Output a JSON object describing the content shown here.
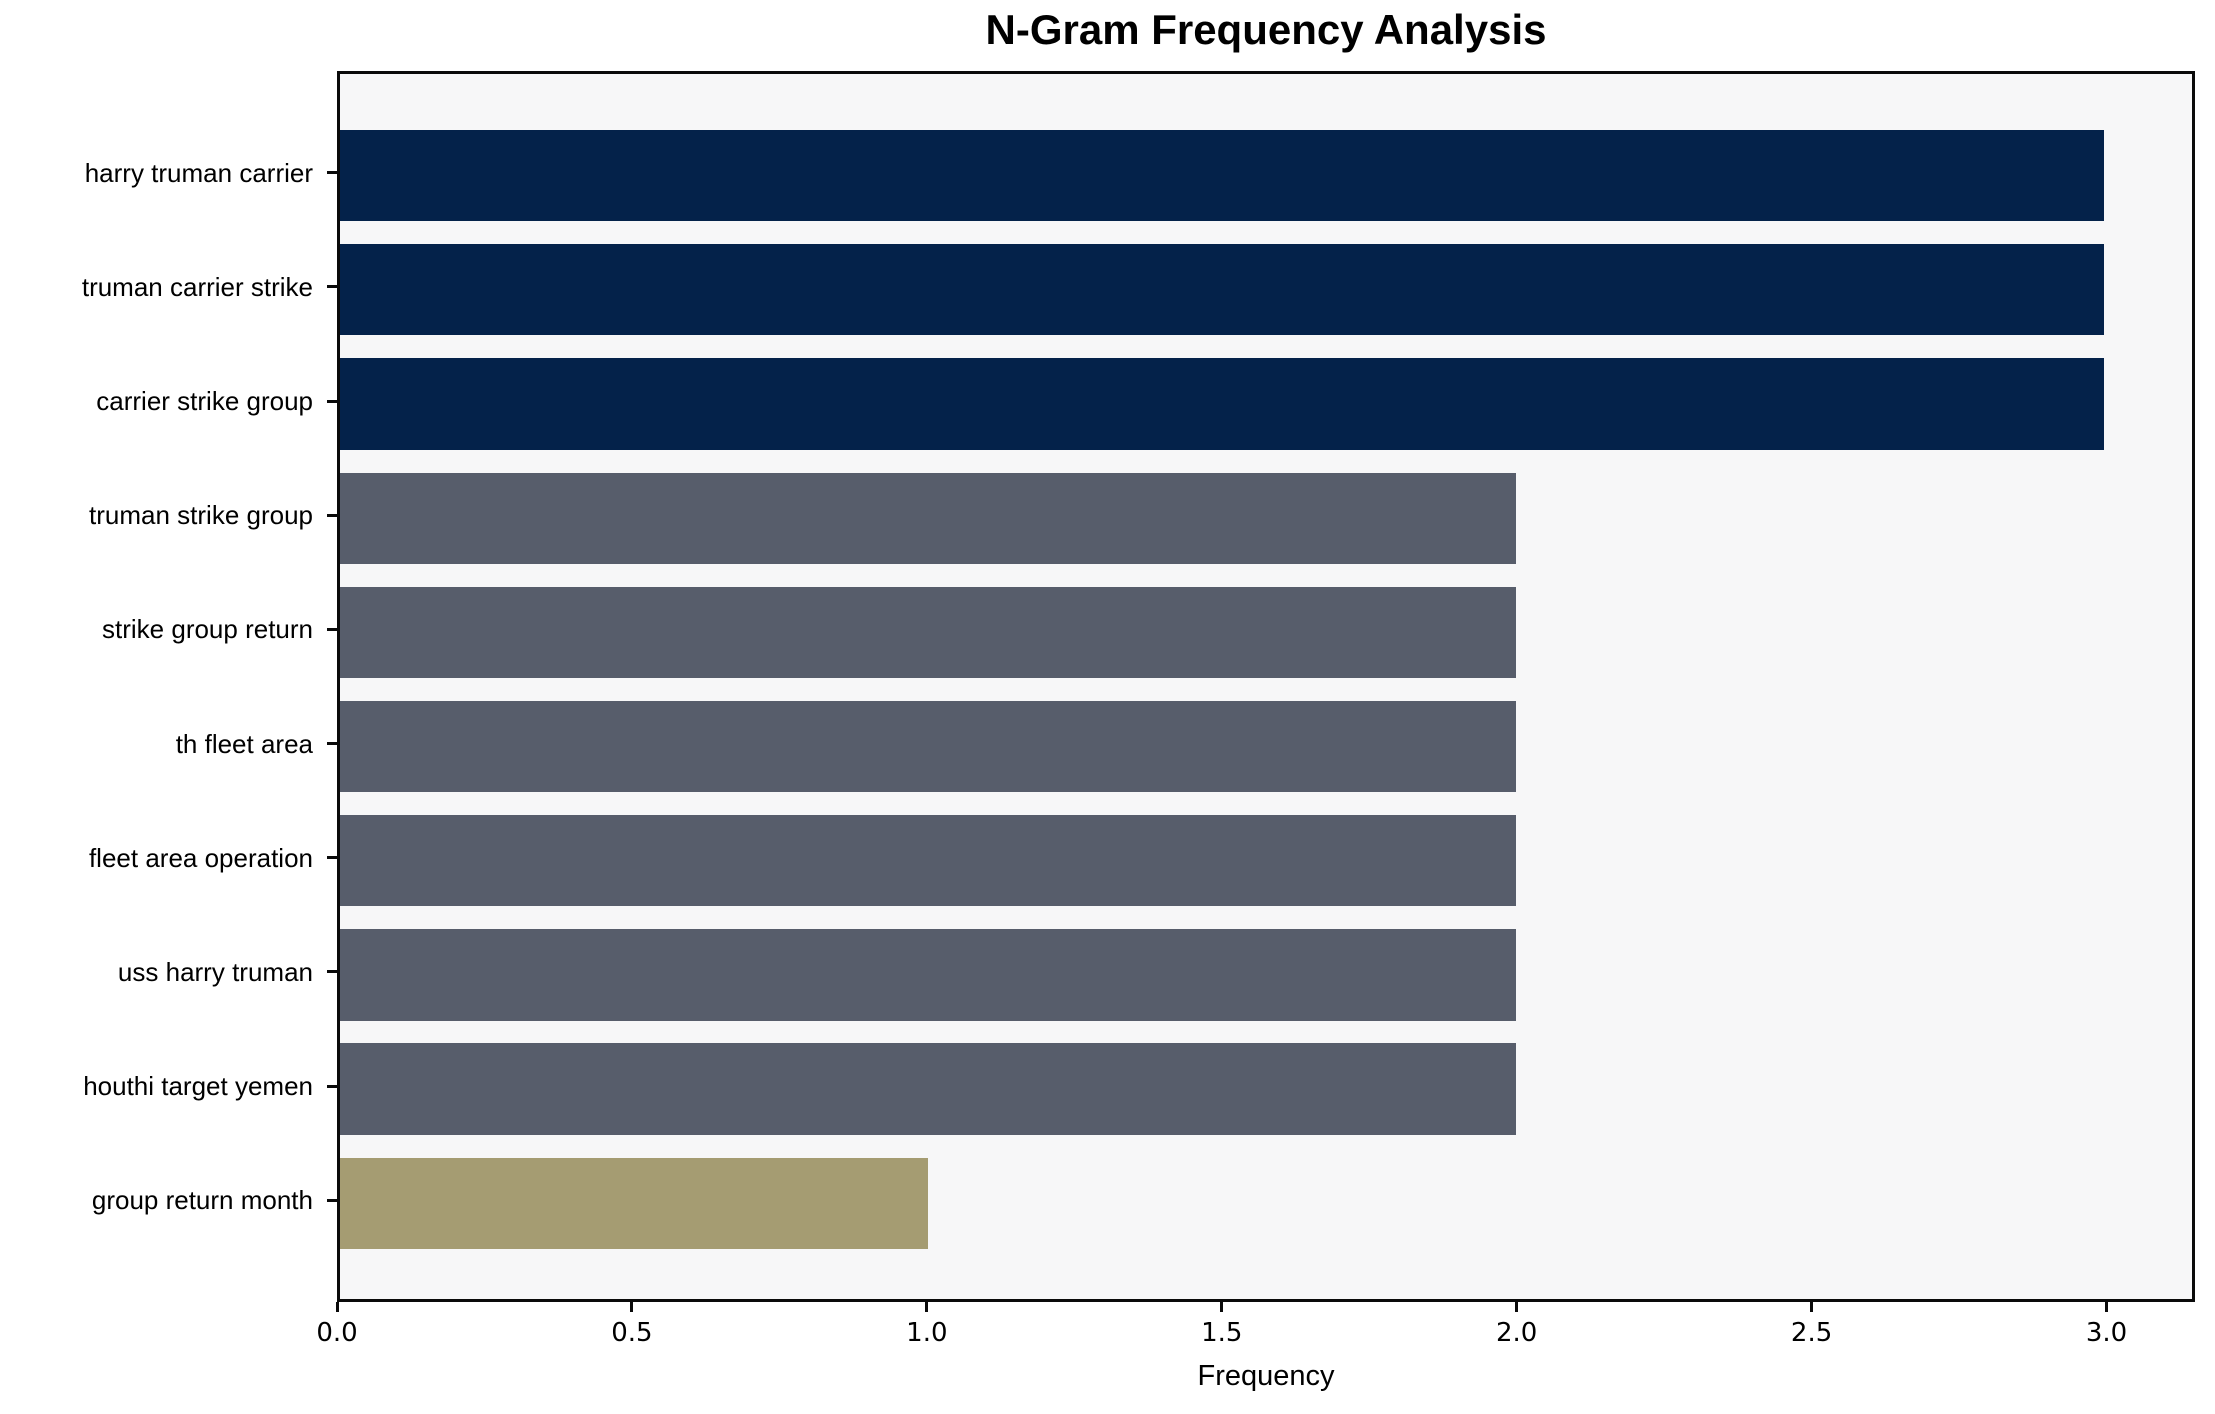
{
  "chart_data": {
    "type": "bar",
    "orientation": "horizontal",
    "title": "N-Gram Frequency Analysis",
    "xlabel": "Frequency",
    "ylabel": "",
    "categories": [
      "harry truman carrier",
      "truman carrier strike",
      "carrier strike group",
      "truman strike group",
      "strike group return",
      "th fleet area",
      "fleet area operation",
      "uss harry truman",
      "houthi target yemen",
      "group return month"
    ],
    "values": [
      3,
      3,
      3,
      2,
      2,
      2,
      2,
      2,
      2,
      1
    ],
    "bar_colors": [
      "#04224a",
      "#04224a",
      "#04224a",
      "#575d6b",
      "#575d6b",
      "#575d6b",
      "#575d6b",
      "#575d6b",
      "#575d6b",
      "#a59c72"
    ],
    "xlim": [
      0,
      3.15
    ],
    "x_ticks": [
      "0.0",
      "0.5",
      "1.0",
      "1.5",
      "2.0",
      "2.5",
      "3.0"
    ],
    "x_tick_values": [
      0,
      0.5,
      1,
      1.5,
      2,
      2.5,
      3
    ],
    "grid": false,
    "legend": "none",
    "plot_background": "#f7f7f8",
    "axis_color": "#0a0a0a"
  }
}
